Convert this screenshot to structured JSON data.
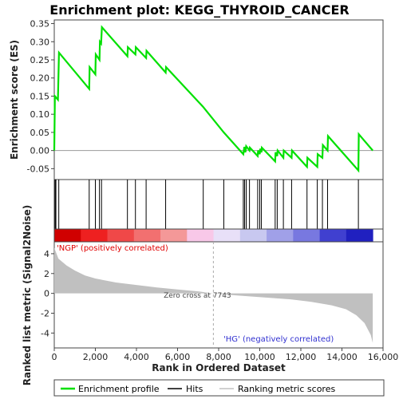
{
  "chart_data": {
    "type": "line",
    "title": "Enrichment plot: KEGG_THYROID_CANCER",
    "ylabel_top": "Enrichment score (ES)",
    "ylabel_bottom": "Ranked list metric (Signal2Noise)",
    "xlabel": "Rank in Ordered Dataset",
    "xlim": [
      0,
      16000
    ],
    "x_ticks": [
      0,
      2000,
      4000,
      6000,
      8000,
      10000,
      12000,
      14000,
      16000
    ],
    "x_tick_labels": [
      "0",
      "2,000",
      "4,000",
      "6,000",
      "8,000",
      "10,000",
      "12,000",
      "14,000",
      "16,000"
    ],
    "es_ylim": [
      -0.08,
      0.36
    ],
    "es_ticks": [
      -0.05,
      0.0,
      0.05,
      0.1,
      0.15,
      0.2,
      0.25,
      0.3,
      0.35
    ],
    "es_tick_labels": [
      "-0.05",
      "0.00",
      "0.05",
      "0.10",
      "0.15",
      "0.20",
      "0.25",
      "0.30",
      "0.35"
    ],
    "metric_ylim": [
      -5.5,
      5.2
    ],
    "metric_ticks": [
      -4,
      -2,
      0,
      2,
      4
    ],
    "metric_tick_labels": [
      "-4",
      "-2",
      "0",
      "2",
      "4"
    ],
    "series": [
      {
        "name": "Enrichment profile",
        "color": "#00e000",
        "points": [
          [
            0,
            0.0
          ],
          [
            30,
            0.15
          ],
          [
            180,
            0.14
          ],
          [
            230,
            0.27
          ],
          [
            1700,
            0.17
          ],
          [
            1720,
            0.23
          ],
          [
            2000,
            0.21
          ],
          [
            2020,
            0.265
          ],
          [
            2200,
            0.25
          ],
          [
            2220,
            0.3
          ],
          [
            2280,
            0.295
          ],
          [
            2320,
            0.34
          ],
          [
            3560,
            0.26
          ],
          [
            3580,
            0.285
          ],
          [
            3950,
            0.265
          ],
          [
            3970,
            0.285
          ],
          [
            4470,
            0.255
          ],
          [
            4490,
            0.275
          ],
          [
            5420,
            0.215
          ],
          [
            5440,
            0.23
          ],
          [
            7250,
            0.12
          ],
          [
            8250,
            0.05
          ],
          [
            9200,
            -0.01
          ],
          [
            9250,
            0.01
          ],
          [
            9300,
            -0.005
          ],
          [
            9340,
            0.012
          ],
          [
            9500,
            0.0
          ],
          [
            9520,
            0.008
          ],
          [
            9900,
            -0.015
          ],
          [
            9920,
            0.0
          ],
          [
            10000,
            -0.01
          ],
          [
            10020,
            0.005
          ],
          [
            10080,
            -0.005
          ],
          [
            10100,
            0.008
          ],
          [
            10750,
            -0.03
          ],
          [
            10770,
            -0.005
          ],
          [
            10850,
            -0.015
          ],
          [
            10870,
            0.0
          ],
          [
            11150,
            -0.02
          ],
          [
            11170,
            0.0
          ],
          [
            11550,
            -0.02
          ],
          [
            11570,
            0.0
          ],
          [
            12300,
            -0.045
          ],
          [
            12320,
            -0.02
          ],
          [
            12800,
            -0.045
          ],
          [
            12820,
            -0.01
          ],
          [
            13050,
            -0.02
          ],
          [
            13070,
            0.015
          ],
          [
            13300,
            0.0
          ],
          [
            13320,
            0.04
          ],
          [
            14800,
            -0.055
          ],
          [
            14820,
            0.045
          ],
          [
            15500,
            0.0
          ]
        ]
      }
    ],
    "hits": [
      40,
      80,
      220,
      1700,
      2000,
      2200,
      2300,
      3560,
      3950,
      4470,
      5420,
      7250,
      8250,
      9200,
      9260,
      9340,
      9500,
      9900,
      10000,
      10080,
      10750,
      10850,
      11150,
      11550,
      12300,
      12800,
      13050,
      13300,
      14800
    ],
    "metric_curve": [
      [
        0,
        4.6
      ],
      [
        200,
        3.5
      ],
      [
        600,
        2.8
      ],
      [
        1000,
        2.3
      ],
      [
        1500,
        1.8
      ],
      [
        2000,
        1.5
      ],
      [
        3000,
        1.1
      ],
      [
        4000,
        0.85
      ],
      [
        5000,
        0.6
      ],
      [
        6000,
        0.4
      ],
      [
        7000,
        0.2
      ],
      [
        7743,
        0.0
      ],
      [
        8500,
        -0.15
      ],
      [
        9500,
        -0.3
      ],
      [
        10500,
        -0.45
      ],
      [
        11500,
        -0.6
      ],
      [
        12500,
        -0.85
      ],
      [
        13500,
        -1.2
      ],
      [
        14200,
        -1.6
      ],
      [
        14700,
        -2.2
      ],
      [
        15100,
        -3.0
      ],
      [
        15400,
        -4.2
      ],
      [
        15500,
        -5.0
      ]
    ],
    "heatmap_colors": [
      "#d00000",
      "#ee2020",
      "#f04848",
      "#f27070",
      "#f49898",
      "#f8c8e8",
      "#e8e0f8",
      "#c8c8f0",
      "#a0a0e8",
      "#7878e0",
      "#4040d0",
      "#2020c0"
    ],
    "zero_cross_label": "Zero cross at 7743",
    "zero_cross": 7743,
    "pos_label": "'NGP' (positively correlated)",
    "neg_label": "'HG' (negatively correlated)",
    "legend": [
      {
        "label": "Enrichment profile",
        "color": "#00e000"
      },
      {
        "label": "Hits",
        "color": "#000000"
      },
      {
        "label": "Ranking metric scores",
        "color": "#c0c0c0"
      }
    ]
  }
}
